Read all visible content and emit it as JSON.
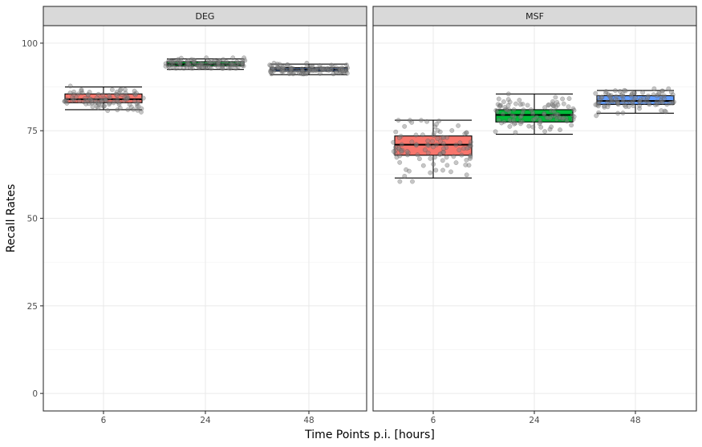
{
  "chart_data": {
    "type": "box",
    "facets": [
      "DEG",
      "MSF"
    ],
    "categories": [
      "6",
      "24",
      "48"
    ],
    "xlabel": "Time Points p.i. [hours]",
    "ylabel": "Recall Rates",
    "ylim": [
      -5,
      105
    ],
    "yticks": [
      0,
      25,
      50,
      75,
      100
    ],
    "grid": true,
    "legend": "none",
    "fill_colors": [
      "#F8766D",
      "#00BA38",
      "#619CFF"
    ],
    "point_color": "#808080",
    "panels": [
      {
        "name": "DEG",
        "boxes": [
          {
            "category": "6",
            "min": 81.0,
            "q1": 83.0,
            "median": 84.0,
            "q3": 85.5,
            "max": 87.5,
            "point_range": [
              79,
              89
            ]
          },
          {
            "category": "24",
            "min": 92.5,
            "q1": 93.5,
            "median": 94.0,
            "q3": 94.7,
            "max": 95.5,
            "point_range": [
              92.8,
              95.8
            ]
          },
          {
            "category": "48",
            "min": 91.0,
            "q1": 92.0,
            "median": 92.5,
            "q3": 93.0,
            "max": 94.0,
            "point_range": [
              91.2,
              94.3
            ]
          }
        ]
      },
      {
        "name": "MSF",
        "boxes": [
          {
            "category": "6",
            "min": 61.5,
            "q1": 68.0,
            "median": 71.0,
            "q3": 73.5,
            "max": 78.0,
            "point_range": [
              60.5,
              78
            ]
          },
          {
            "category": "24",
            "min": 74.0,
            "q1": 77.5,
            "median": 79.5,
            "q3": 81.0,
            "max": 85.5,
            "point_range": [
              74.5,
              85.5
            ]
          },
          {
            "category": "48",
            "min": 80.0,
            "q1": 82.5,
            "median": 83.5,
            "q3": 85.0,
            "max": 86.5,
            "point_range": [
              79,
              87
            ]
          }
        ]
      }
    ]
  }
}
